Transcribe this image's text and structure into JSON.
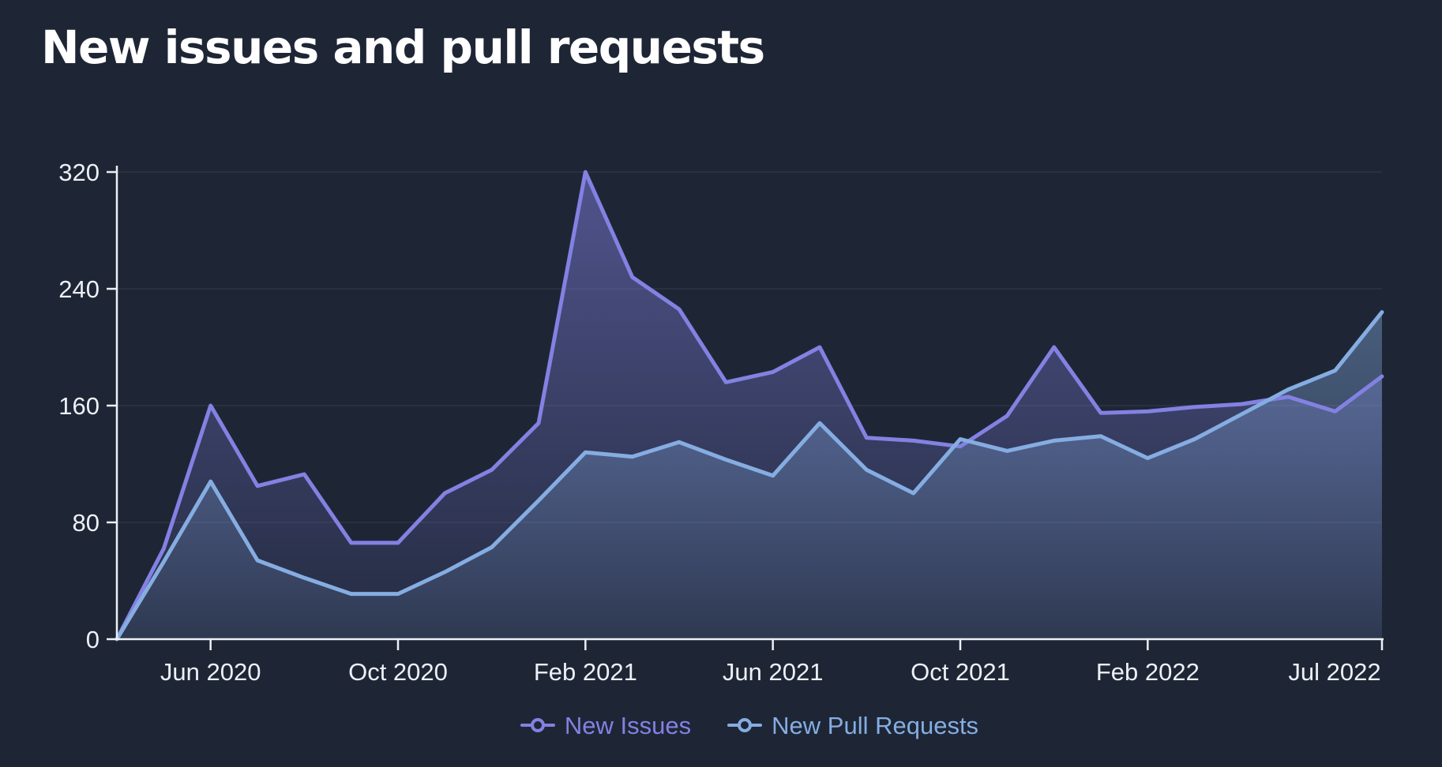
{
  "page": {
    "background": "#1e2636"
  },
  "header": {
    "title": "New issues and pull requests"
  },
  "chart_data": {
    "type": "area",
    "title": "New issues and pull requests",
    "x": [
      "Apr 2020",
      "May 2020",
      "Jun 2020",
      "Jul 2020",
      "Aug 2020",
      "Sep 2020",
      "Oct 2020",
      "Nov 2020",
      "Dec 2020",
      "Jan 2021",
      "Feb 2021",
      "Mar 2021",
      "Apr 2021",
      "May 2021",
      "Jun 2021",
      "Jul 2021",
      "Aug 2021",
      "Sep 2021",
      "Oct 2021",
      "Nov 2021",
      "Dec 2021",
      "Jan 2022",
      "Feb 2022",
      "Mar 2022",
      "Apr 2022",
      "May 2022",
      "Jun 2022",
      "Jul 2022"
    ],
    "series": [
      {
        "name": "New Issues",
        "color": "#8381e2",
        "values": [
          0,
          62,
          160,
          105,
          113,
          66,
          66,
          100,
          116,
          148,
          320,
          248,
          226,
          176,
          183,
          200,
          138,
          136,
          132,
          153,
          200,
          155,
          156,
          159,
          161,
          166,
          156,
          180
        ]
      },
      {
        "name": "New Pull Requests",
        "color": "#85ade2",
        "values": [
          0,
          53,
          108,
          54,
          42,
          31,
          31,
          46,
          63,
          95,
          128,
          125,
          135,
          123,
          112,
          148,
          116,
          100,
          137,
          129,
          136,
          139,
          124,
          137,
          154,
          171,
          184,
          224
        ]
      }
    ],
    "ylim": [
      0,
      320
    ],
    "yticks": [
      0,
      80,
      160,
      240,
      320
    ],
    "xtick_labels": [
      "Jun 2020",
      "Oct 2020",
      "Feb 2021",
      "Jun 2021",
      "Oct 2021",
      "Feb 2022",
      "Jul 2022"
    ],
    "xtick_indices": [
      2,
      6,
      10,
      14,
      18,
      22,
      27
    ],
    "grid": "horizontal",
    "legend_position": "bottom",
    "axis_color": "#edf0f5",
    "tick_label_color": "#edf0f5",
    "grid_color": "rgba(255,255,255,0.07)"
  },
  "legend": {
    "items": [
      {
        "label": "New Issues",
        "color": "#8381e2"
      },
      {
        "label": "New Pull Requests",
        "color": "#85ade2"
      }
    ]
  }
}
